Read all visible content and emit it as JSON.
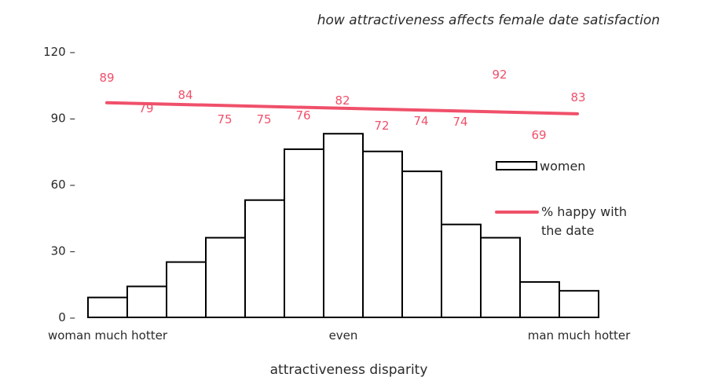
{
  "chart_data": {
    "type": "bar",
    "title": "how attractiveness affects female date satisfaction",
    "xlabel": "attractiveness disparity",
    "ylabel": "",
    "ylim": [
      0,
      120
    ],
    "yticks": [
      0,
      30,
      60,
      90,
      120
    ],
    "ytick_labels": [
      "0 –",
      "30 –",
      "60 –",
      "90 –",
      "120 –"
    ],
    "x_category_labels": [
      {
        "bin": 0,
        "label": "woman much hotter"
      },
      {
        "bin": 6,
        "label": "even"
      },
      {
        "bin": 12,
        "label": "man much hotter"
      }
    ],
    "grid": false,
    "legend_placement": "right",
    "series": [
      {
        "name": "women",
        "type": "bar",
        "values": [
          9,
          14,
          25,
          36,
          53,
          76,
          83,
          75,
          66,
          42,
          36,
          16,
          12
        ],
        "color": "#000000"
      },
      {
        "name": "% happy with the date",
        "type": "line",
        "trend_start": 97,
        "trend_end": 92,
        "color": "#f0506a",
        "data_labels": [
          "89",
          "79",
          "84",
          "75",
          "75",
          "76",
          "82",
          "72",
          "74",
          "74",
          "92",
          "69",
          "83"
        ]
      }
    ],
    "legend": [
      {
        "label": "women"
      },
      {
        "label_line1": "% happy with",
        "label_line2": "the date"
      }
    ]
  }
}
